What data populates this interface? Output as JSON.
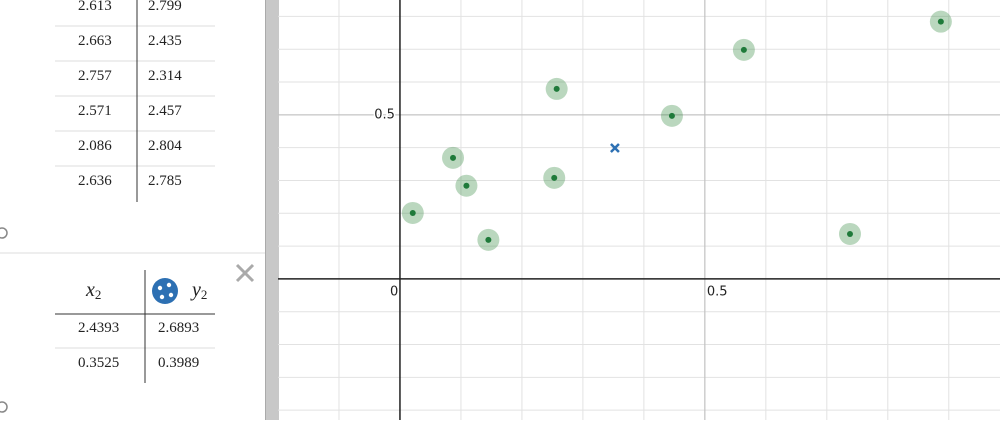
{
  "table1": {
    "rows": [
      [
        "2.613",
        "2.799"
      ],
      [
        "2.663",
        "2.435"
      ],
      [
        "2.757",
        "2.314"
      ],
      [
        "2.571",
        "2.457"
      ],
      [
        "2.086",
        "2.804"
      ],
      [
        "2.636",
        "2.785"
      ]
    ]
  },
  "table2": {
    "headers": [
      {
        "symbol": "x",
        "sub": "2"
      },
      {
        "symbol": "y",
        "sub": "2"
      }
    ],
    "rows": [
      [
        "2.4393",
        "2.6893"
      ],
      [
        "0.3525",
        "0.3989"
      ]
    ]
  },
  "graph": {
    "type": "scatter",
    "xlim": [
      -0.2,
      0.984
    ],
    "ylim": [
      -0.43,
      0.85
    ],
    "xticks": [
      0,
      0.5
    ],
    "yticks": [
      0.5
    ],
    "xgrid": [
      -0.1,
      0,
      0.1,
      0.2,
      0.3,
      0.4,
      0.5,
      0.6,
      0.7,
      0.8,
      0.9
    ],
    "ygrid": [
      -0.4,
      -0.3,
      -0.2,
      -0.1,
      0,
      0.1,
      0.2,
      0.3,
      0.4,
      0.5,
      0.6,
      0.7,
      0.8
    ],
    "points": {
      "color": "#388c46",
      "x": [
        0.021,
        0.087,
        0.109,
        0.145,
        0.257,
        0.253,
        0.446,
        0.564,
        0.738,
        0.887
      ],
      "y": [
        0.201,
        0.369,
        0.284,
        0.119,
        0.579,
        0.308,
        0.497,
        0.698,
        0.137,
        0.784
      ]
    },
    "cross": {
      "color": "#2d70b3",
      "x": 0.3525,
      "y": 0.3989
    }
  }
}
